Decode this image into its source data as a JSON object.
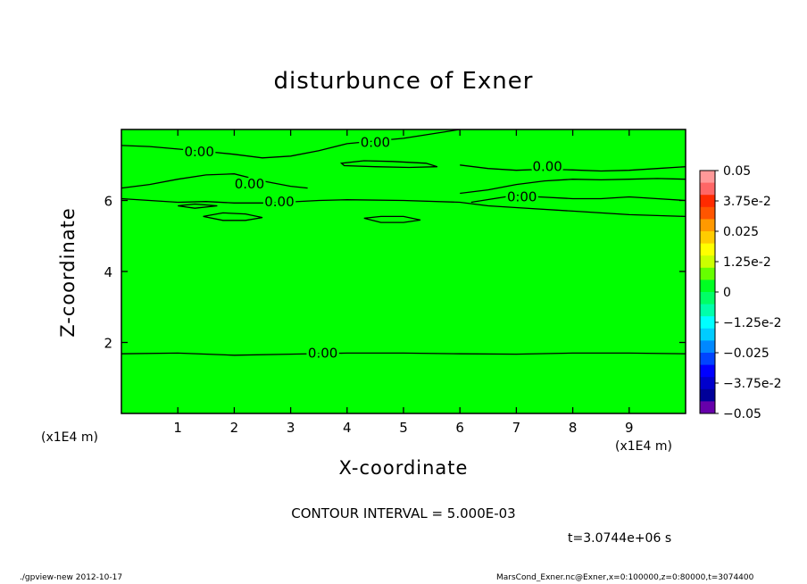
{
  "chart_data": {
    "type": "heatmap",
    "title": "disturbunce of Exner",
    "xlabel": "X-coordinate",
    "ylabel": "Z-coordinate",
    "x_unit": "(x1E4 m)",
    "xlim": [
      0,
      10
    ],
    "ylim": [
      0,
      8
    ],
    "x_ticks": [
      1,
      2,
      3,
      4,
      5,
      6,
      7,
      8,
      9
    ],
    "y_ticks": [
      2,
      4,
      6
    ],
    "field_value": 0,
    "colorbar": {
      "min": -0.05,
      "max": 0.05,
      "tick_labels": [
        "0.05",
        "3.75e-2",
        "0.025",
        "1.25e-2",
        "0",
        "−1.25e-2",
        "−0.025",
        "−3.75e-2",
        "−0.05"
      ],
      "colors": [
        "#ff9999",
        "#ff6666",
        "#ff2a00",
        "#ff5500",
        "#ff9900",
        "#ffcc00",
        "#ffff00",
        "#ccff00",
        "#66ff00",
        "#00ff22",
        "#00ff66",
        "#00ffaa",
        "#00ffff",
        "#00ccff",
        "#0088ff",
        "#0044ff",
        "#0000ff",
        "#0000cc",
        "#000099",
        "#6600aa"
      ]
    },
    "contour_labels": [
      {
        "text": "0.00",
        "x": 1.38,
        "z": 7.37
      },
      {
        "text": "0.00",
        "x": 4.5,
        "z": 7.63
      },
      {
        "text": "0.00",
        "x": 7.55,
        "z": 6.96
      },
      {
        "text": "0.00",
        "x": 2.27,
        "z": 6.46
      },
      {
        "text": "0.00",
        "x": 7.1,
        "z": 6.1
      },
      {
        "text": "0.00",
        "x": 2.8,
        "z": 5.96
      },
      {
        "text": "0.00",
        "x": 3.57,
        "z": 1.7
      }
    ],
    "contour_lines": [
      {
        "x": [
          0,
          0.5,
          1.0,
          1.5,
          2.0,
          2.5,
          3.0,
          3.5,
          4.0,
          5.0,
          6.0
        ],
        "z": [
          7.55,
          7.52,
          7.45,
          7.38,
          7.3,
          7.2,
          7.25,
          7.4,
          7.6,
          7.75,
          8.0
        ]
      },
      {
        "x": [
          0,
          0.5,
          1.0,
          1.5,
          2.0,
          2.5,
          3.0,
          3.3
        ],
        "z": [
          6.35,
          6.45,
          6.6,
          6.72,
          6.75,
          6.55,
          6.4,
          6.35
        ]
      },
      {
        "x": [
          0,
          0.5,
          1.0,
          1.5,
          2.0,
          2.5,
          3.0,
          3.5,
          4.0,
          5.0,
          6.0,
          6.5,
          7.0,
          8.0,
          9.0,
          10.0
        ],
        "z": [
          6.05,
          6.0,
          5.95,
          5.97,
          5.93,
          5.93,
          5.96,
          6.0,
          6.02,
          6.0,
          5.95,
          5.85,
          5.8,
          5.7,
          5.6,
          5.55
        ]
      },
      {
        "x": [
          6.0,
          6.5,
          7.0,
          7.5,
          8.0,
          8.5,
          9.0,
          9.5,
          10.0
        ],
        "z": [
          7.0,
          6.9,
          6.85,
          6.88,
          6.86,
          6.83,
          6.85,
          6.9,
          6.95
        ]
      },
      {
        "x": [
          6.0,
          6.5,
          7.0,
          7.5,
          8.0,
          8.5,
          9.0,
          9.5,
          10.0
        ],
        "z": [
          6.2,
          6.3,
          6.45,
          6.55,
          6.6,
          6.58,
          6.6,
          6.62,
          6.6
        ]
      },
      {
        "x": [
          6.2,
          6.6,
          7.0,
          7.4,
          8.0,
          8.5,
          9.0,
          9.5,
          10.0
        ],
        "z": [
          5.95,
          6.05,
          6.15,
          6.1,
          6.05,
          6.05,
          6.1,
          6.05,
          6.0
        ]
      },
      {
        "x": [
          0,
          1.0,
          2.0,
          3.0,
          4.0,
          5.0,
          6.0,
          7.0,
          8.0,
          9.0,
          10.0
        ],
        "z": [
          1.68,
          1.7,
          1.64,
          1.67,
          1.7,
          1.7,
          1.68,
          1.67,
          1.7,
          1.7,
          1.68
        ]
      }
    ],
    "contour_loops": [
      {
        "x": [
          3.9,
          4.3,
          4.8,
          5.4,
          5.6,
          5.1,
          4.5,
          3.95,
          3.9
        ],
        "z": [
          7.05,
          7.12,
          7.1,
          7.05,
          6.95,
          6.93,
          6.95,
          6.98,
          7.05
        ]
      },
      {
        "x": [
          1.45,
          1.8,
          2.2,
          2.5,
          2.2,
          1.8,
          1.45
        ],
        "z": [
          5.55,
          5.65,
          5.62,
          5.52,
          5.44,
          5.44,
          5.55
        ]
      },
      {
        "x": [
          4.3,
          4.6,
          5.0,
          5.3,
          5.0,
          4.6,
          4.3
        ],
        "z": [
          5.5,
          5.55,
          5.55,
          5.45,
          5.38,
          5.38,
          5.5
        ]
      },
      {
        "x": [
          1.0,
          1.3,
          1.7,
          1.3,
          1.0
        ],
        "z": [
          5.85,
          5.9,
          5.85,
          5.78,
          5.85
        ]
      }
    ]
  },
  "contour_interval": "CONTOUR INTERVAL = 5.000E-03",
  "time_label": "t=3.0744e+06 s",
  "footer_left": "./gpview-new  2012-10-17",
  "footer_right": "MarsCond_Exner.nc@Exner,x=0:100000,z=0:80000,t=3074400",
  "colors": {
    "field": "#00ff00",
    "line": "#000000",
    "background": "#ffffff"
  }
}
